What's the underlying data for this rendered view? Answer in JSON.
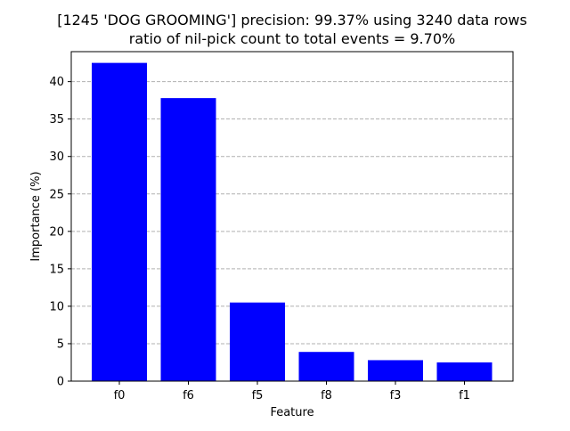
{
  "chart_data": {
    "type": "bar",
    "title": "[1245 'DOG  GROOMING'] precision: 99.37% using 3240 data rows",
    "subtitle": "ratio of nil-pick count to total events = 9.70%",
    "xlabel": "Feature",
    "ylabel": "Importance (%)",
    "categories": [
      "f0",
      "f6",
      "f5",
      "f8",
      "f3",
      "f1"
    ],
    "values": [
      42.5,
      37.8,
      10.5,
      3.9,
      2.8,
      2.5
    ],
    "ylim": [
      0,
      44
    ],
    "yticks": [
      0,
      5,
      10,
      15,
      20,
      25,
      30,
      35,
      40
    ],
    "grid": "y-dashed",
    "bar_color": "#0000ff",
    "grid_color": "#b0b0b0"
  }
}
